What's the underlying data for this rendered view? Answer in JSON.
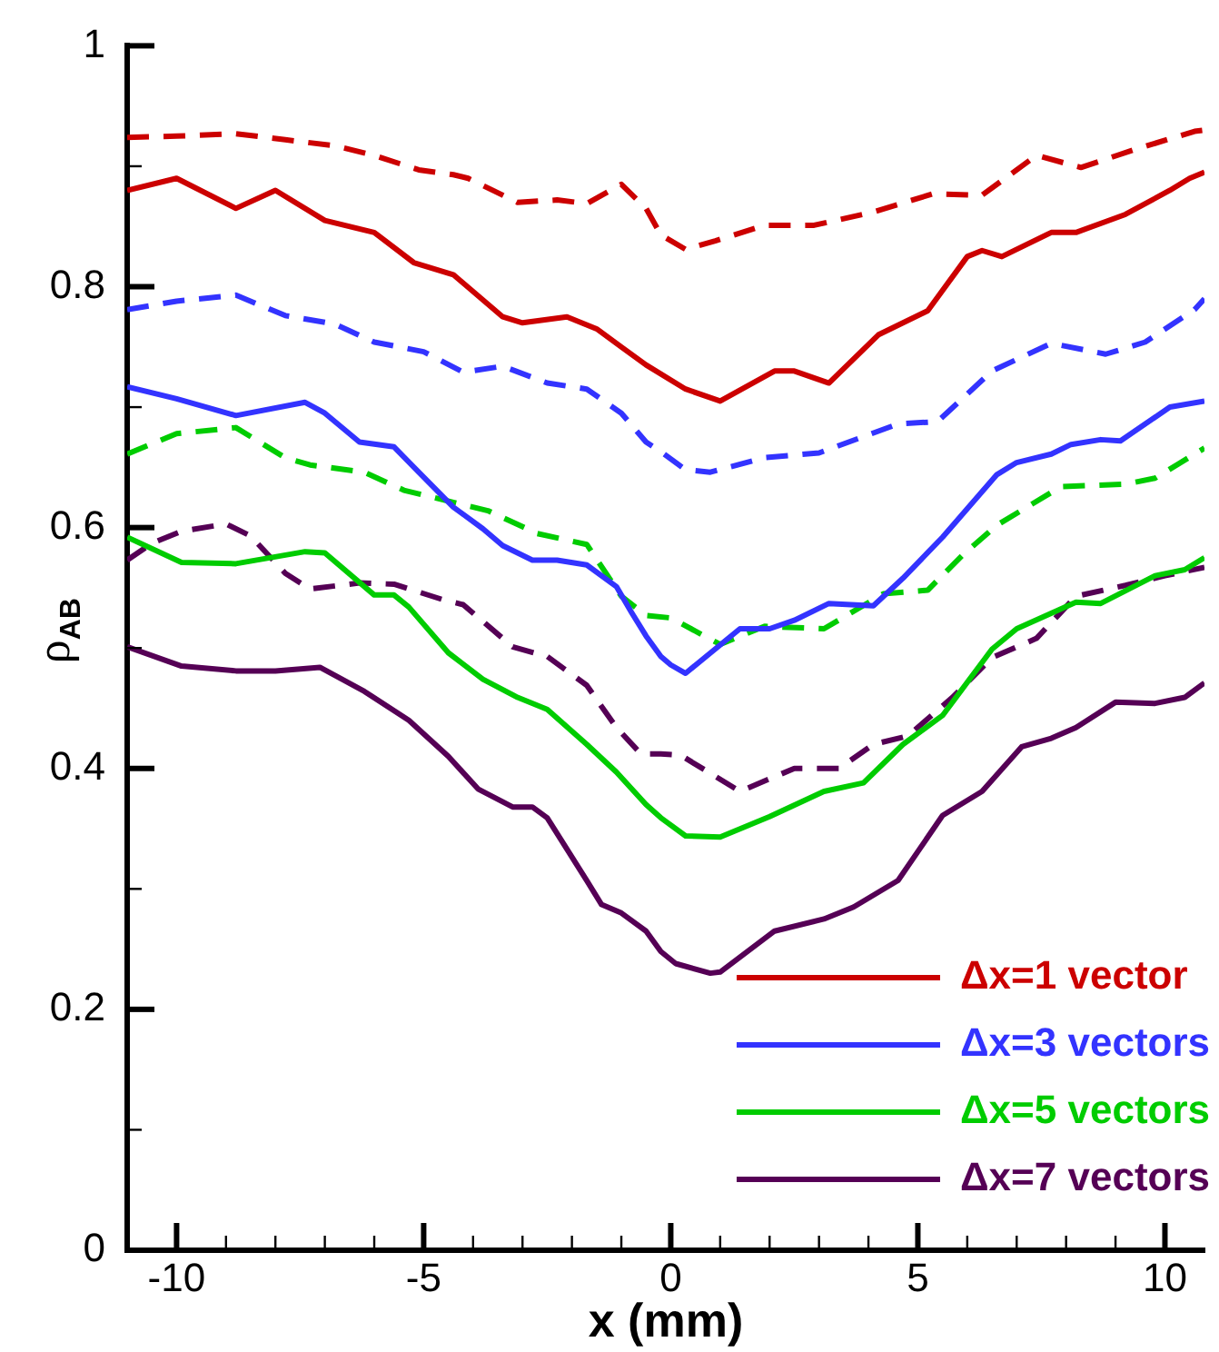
{
  "chart_data": {
    "type": "line",
    "xlabel": "x (mm)",
    "ylabel": "ρ$_{AB}$",
    "xlim": [
      -11,
      10.8
    ],
    "ylim": [
      0,
      1
    ],
    "xticks": [
      {
        "value": -11,
        "label": null
      },
      -10,
      {
        "value": -9,
        "label": null
      },
      {
        "value": -8,
        "label": null
      },
      {
        "value": -7,
        "label": null
      },
      {
        "value": -6,
        "label": null
      },
      -5,
      {
        "value": -4,
        "label": null
      },
      {
        "value": -3,
        "label": null
      },
      {
        "value": -2,
        "label": null
      },
      {
        "value": -1,
        "label": null
      },
      0,
      {
        "value": 1,
        "label": null
      },
      {
        "value": 2,
        "label": null
      },
      {
        "value": 3,
        "label": null
      },
      {
        "value": 4,
        "label": null
      },
      5,
      {
        "value": 6,
        "label": null
      },
      {
        "value": 7,
        "label": null
      },
      {
        "value": 8,
        "label": null
      },
      {
        "value": 9,
        "label": null
      },
      10
    ],
    "yticks": [
      0,
      {
        "value": 0.1,
        "label": null
      },
      0.2,
      {
        "value": 0.3,
        "label": null
      },
      0.4,
      {
        "value": 0.5,
        "label": null
      },
      0.6,
      {
        "value": 0.7,
        "label": null
      },
      0.8,
      {
        "value": 0.9,
        "label": null
      },
      1
    ],
    "grid": false,
    "legend": "bottom right",
    "marker": "none",
    "series": [
      {
        "name": "Δx=1 vector",
        "color": "#cc0000",
        "line_style": "solid",
        "x": [
          -11,
          -10,
          -8.8,
          -8,
          -7,
          -6,
          -5.2,
          -4.4,
          -3.4,
          -3,
          -2.1,
          -1.5,
          -1,
          -0.5,
          0.3,
          1,
          2.1,
          2.5,
          3.2,
          4.2,
          5.2,
          6,
          6.3,
          6.7,
          7.7,
          8.2,
          9.2,
          10.1,
          10.5,
          10.8
        ],
        "values": [
          0.88,
          0.89,
          0.865,
          0.88,
          0.855,
          0.845,
          0.82,
          0.81,
          0.775,
          0.77,
          0.775,
          0.765,
          0.75,
          0.735,
          0.715,
          0.705,
          0.73,
          0.73,
          0.72,
          0.76,
          0.78,
          0.825,
          0.83,
          0.825,
          0.845,
          0.845,
          0.86,
          0.88,
          0.89,
          0.895
        ]
      },
      {
        "color": "#cc0000",
        "line_style": "dashed",
        "x": [
          -11,
          -10,
          -8.8,
          -7.8,
          -6.8,
          -6,
          -5.1,
          -4.4,
          -4.1,
          -3.1,
          -2.3,
          -1.7,
          -1,
          -0.5,
          -0.2,
          0.3,
          0.9,
          1.9,
          2.9,
          4.1,
          5.3,
          6.3,
          7.4,
          8.3,
          9.4,
          10.6,
          10.8
        ],
        "values": [
          0.924,
          0.925,
          0.927,
          0.922,
          0.917,
          0.909,
          0.897,
          0.893,
          0.89,
          0.87,
          0.872,
          0.869,
          0.885,
          0.865,
          0.843,
          0.831,
          0.838,
          0.851,
          0.851,
          0.862,
          0.877,
          0.876,
          0.909,
          0.899,
          0.914,
          0.929,
          0.93
        ]
      },
      {
        "name": "Δx=3 vectors",
        "color": "#3333ff",
        "line_style": "solid",
        "x": [
          -11,
          -10,
          -8.8,
          -7.4,
          -7,
          -6.3,
          -5.6,
          -5.1,
          -4.4,
          -3.8,
          -3.4,
          -2.8,
          -2.3,
          -1.7,
          -1.1,
          -0.8,
          -0.5,
          -0.2,
          0,
          0.3,
          1.4,
          2,
          2.5,
          3.2,
          4.1,
          4.7,
          5.5,
          6.6,
          7,
          7.7,
          8.1,
          8.7,
          9.1,
          10.1,
          10.8
        ],
        "values": [
          0.717,
          0.707,
          0.693,
          0.704,
          0.695,
          0.671,
          0.667,
          0.646,
          0.617,
          0.599,
          0.585,
          0.573,
          0.573,
          0.569,
          0.551,
          0.53,
          0.51,
          0.493,
          0.486,
          0.479,
          0.516,
          0.516,
          0.523,
          0.537,
          0.535,
          0.558,
          0.592,
          0.644,
          0.654,
          0.661,
          0.669,
          0.673,
          0.672,
          0.7,
          0.705
        ]
      },
      {
        "color": "#3333ff",
        "line_style": "dashed",
        "x": [
          -11,
          -10,
          -8.8,
          -7.8,
          -6.8,
          -6,
          -5,
          -4.2,
          -3.4,
          -2.5,
          -1.7,
          -1,
          -0.5,
          -0.2,
          0.3,
          0.8,
          1.9,
          3,
          4.6,
          5.4,
          6.5,
          7.7,
          8.8,
          9.6,
          10.6,
          10.8
        ],
        "values": [
          0.781,
          0.788,
          0.793,
          0.776,
          0.769,
          0.754,
          0.746,
          0.729,
          0.734,
          0.72,
          0.715,
          0.695,
          0.671,
          0.663,
          0.648,
          0.646,
          0.658,
          0.662,
          0.686,
          0.688,
          0.73,
          0.753,
          0.744,
          0.754,
          0.781,
          0.79
        ]
      },
      {
        "name": "Δx=5 vectors",
        "color": "#00cc00",
        "line_style": "solid",
        "x": [
          -11,
          -9.9,
          -8.8,
          -7.4,
          -7,
          -6,
          -5.6,
          -5.3,
          -4.5,
          -3.8,
          -3.1,
          -2.5,
          -1.7,
          -1.1,
          -0.5,
          -0.2,
          0.3,
          1,
          2,
          3.1,
          3.9,
          4.7,
          5.5,
          6.5,
          7,
          8.2,
          8.7,
          9.8,
          10.4,
          10.8
        ],
        "values": [
          0.592,
          0.571,
          0.57,
          0.58,
          0.579,
          0.544,
          0.544,
          0.534,
          0.496,
          0.474,
          0.459,
          0.449,
          0.42,
          0.397,
          0.37,
          0.359,
          0.344,
          0.343,
          0.36,
          0.381,
          0.388,
          0.42,
          0.444,
          0.499,
          0.516,
          0.538,
          0.537,
          0.56,
          0.565,
          0.575
        ]
      },
      {
        "color": "#00cc00",
        "line_style": "dashed",
        "x": [
          -11,
          -10,
          -8.8,
          -7.8,
          -7.3,
          -6.2,
          -5.4,
          -4.4,
          -3.7,
          -2.7,
          -1.7,
          -1,
          -0.5,
          0,
          1,
          1.9,
          3.1,
          4.3,
          5.2,
          5.9,
          6.6,
          7.9,
          9.2,
          9.8,
          10.8
        ],
        "values": [
          0.661,
          0.678,
          0.683,
          0.658,
          0.652,
          0.646,
          0.631,
          0.621,
          0.614,
          0.595,
          0.586,
          0.543,
          0.527,
          0.525,
          0.503,
          0.518,
          0.516,
          0.545,
          0.548,
          0.577,
          0.602,
          0.634,
          0.636,
          0.641,
          0.666
        ]
      },
      {
        "name": "Δx=7 vectors",
        "color": "#550055",
        "line_style": "solid",
        "x": [
          -11,
          -9.9,
          -8.8,
          -8,
          -7.1,
          -6.2,
          -5.3,
          -4.5,
          -3.9,
          -3.2,
          -2.8,
          -2.5,
          -1.7,
          -1.4,
          -1,
          -0.5,
          -0.2,
          0.1,
          0.8,
          1,
          2.1,
          3.1,
          3.7,
          4.6,
          5.5,
          6.3,
          7.1,
          7.7,
          8.2,
          9,
          9.8,
          10.4,
          10.8
        ],
        "values": [
          0.501,
          0.485,
          0.481,
          0.481,
          0.484,
          0.464,
          0.44,
          0.41,
          0.383,
          0.368,
          0.368,
          0.359,
          0.307,
          0.287,
          0.28,
          0.265,
          0.248,
          0.238,
          0.23,
          0.231,
          0.265,
          0.275,
          0.285,
          0.307,
          0.361,
          0.381,
          0.418,
          0.425,
          0.434,
          0.455,
          0.454,
          0.459,
          0.471
        ]
      },
      {
        "color": "#550055",
        "line_style": "dashed",
        "x": [
          -11,
          -10.5,
          -9.9,
          -9,
          -8.5,
          -7.8,
          -7.3,
          -6.3,
          -5.6,
          -4.6,
          -4.2,
          -3.2,
          -2.5,
          -1.7,
          -1.1,
          -0.6,
          -0.2,
          0.2,
          1.4,
          2.5,
          3.4,
          4.1,
          4.8,
          5.7,
          6.5,
          7.4,
          8.2,
          9.2,
          10,
          10.8
        ],
        "values": [
          0.573,
          0.587,
          0.597,
          0.603,
          0.593,
          0.562,
          0.549,
          0.554,
          0.553,
          0.54,
          0.536,
          0.501,
          0.493,
          0.469,
          0.434,
          0.412,
          0.412,
          0.411,
          0.381,
          0.4,
          0.4,
          0.42,
          0.427,
          0.459,
          0.492,
          0.508,
          0.543,
          0.552,
          0.56,
          0.567
        ]
      }
    ]
  }
}
